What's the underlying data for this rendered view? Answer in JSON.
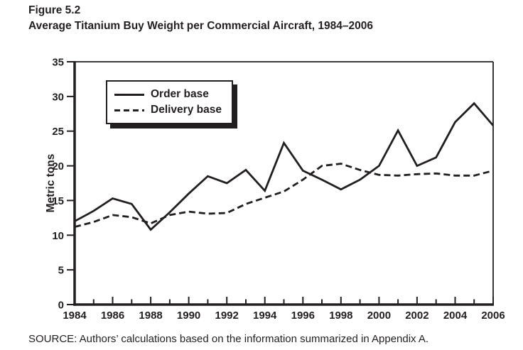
{
  "figure": {
    "label": "Figure 5.2",
    "title": "Average Titanium Buy Weight per Commercial Aircraft, 1984–2006"
  },
  "source": "SOURCE: Authors’ calculations based on the information summarized in Appendix A.",
  "ink_color": "#231f20",
  "chart_data": {
    "type": "line",
    "title": "Average Titanium Buy Weight per Commercial Aircraft, 1984–2006",
    "xlabel": "",
    "ylabel": "Metric tons",
    "ylim": [
      0,
      35
    ],
    "y_tick_labels": [
      "0",
      "5",
      "10",
      "15",
      "20",
      "25",
      "30",
      "35"
    ],
    "x_tick_labels": [
      "1984",
      "1986",
      "1988",
      "1990",
      "1992",
      "1994",
      "1996",
      "1998",
      "2000",
      "2002",
      "2004",
      "2006"
    ],
    "x": [
      1984,
      1985,
      1986,
      1987,
      1988,
      1989,
      1990,
      1991,
      1992,
      1993,
      1994,
      1995,
      1996,
      1997,
      1998,
      1999,
      2000,
      2001,
      2002,
      2003,
      2004,
      2005,
      2006
    ],
    "series": [
      {
        "name": "Order base",
        "style": "solid",
        "values": [
          12.0,
          13.5,
          15.3,
          14.5,
          10.8,
          13.3,
          16.0,
          18.5,
          17.5,
          19.4,
          16.4,
          23.3,
          19.3,
          18.0,
          16.6,
          18.0,
          20.0,
          25.1,
          20.0,
          21.2,
          26.3,
          29.0,
          25.8
        ]
      },
      {
        "name": "Delivery base",
        "style": "dashed",
        "values": [
          11.2,
          11.9,
          12.9,
          12.6,
          11.7,
          12.9,
          13.4,
          13.1,
          13.2,
          14.5,
          15.4,
          16.3,
          18.0,
          20.0,
          20.3,
          19.4,
          18.7,
          18.6,
          18.8,
          18.9,
          18.6,
          18.6,
          19.3
        ]
      }
    ],
    "legend_position": "top-left",
    "grid": false
  }
}
